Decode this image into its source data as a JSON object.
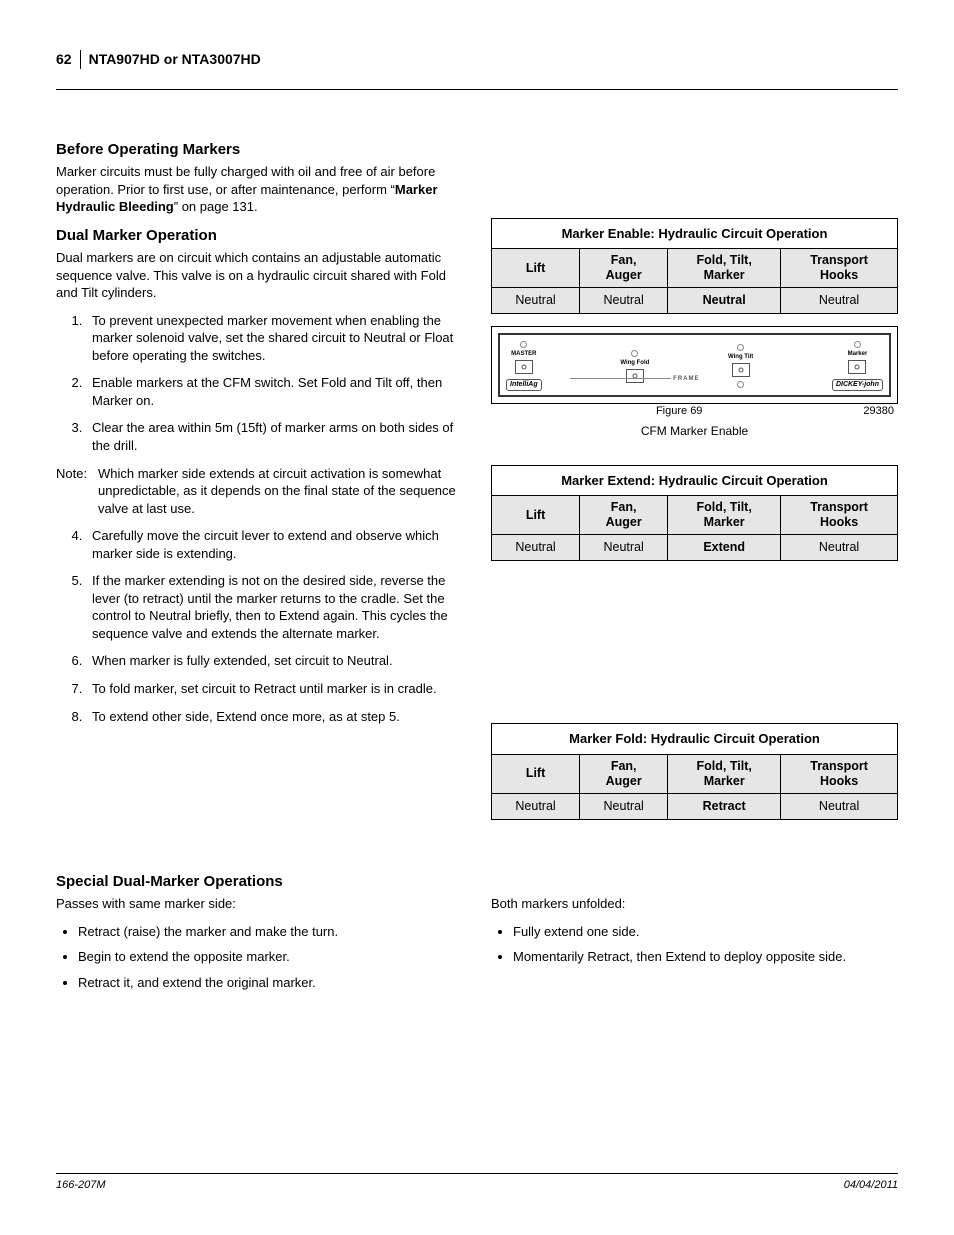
{
  "header": {
    "page_number": "62",
    "doc_title": "NTA907HD or NTA3007HD"
  },
  "left": {
    "h1": "Before Operating Markers",
    "p1_a": "Marker circuits must be fully charged with oil and free of air before operation. Prior to first use, or after maintenance, perform “",
    "p1_b": "Marker Hydraulic Bleeding",
    "p1_c": "” on page 131.",
    "h2": "Dual Marker Operation",
    "p2": "Dual markers are on circuit which contains an adjustable automatic sequence valve. This valve is on a hydraulic circuit shared with Fold and Tilt cylinders.",
    "ol1": [
      "To prevent unexpected marker movement when enabling the marker solenoid valve, set the shared circuit to Neutral or Float before operating the switches.",
      "Enable markers at the CFM switch. Set Fold and Tilt off, then Marker on.",
      "Clear the area within 5m (15ft) of marker arms on both sides of the drill."
    ],
    "note_label": "Note:",
    "note_text": "Which marker side extends at circuit activation is somewhat unpredictable, as it depends on the final state of the sequence valve at last use.",
    "ol2": [
      "Carefully move the circuit lever to extend and observe which marker side is extending.",
      "If the marker extending is not on the desired side, reverse the lever (to retract) until the marker returns to the cradle. Set the control to Neutral briefly, then to Extend again. This cycles the sequence valve and extends the alternate marker.",
      "When marker is fully extended, set circuit to Neutral.",
      "To fold marker, set circuit to Retract until marker is in cradle.",
      "To extend other side, Extend once more, as at step 5."
    ]
  },
  "tables": {
    "headers": [
      "Lift",
      "Fan,\nAuger",
      "Fold, Tilt,\nMarker",
      "Transport\nHooks"
    ],
    "enable": {
      "title": "Marker Enable: Hydraulic Circuit Operation",
      "row": [
        "Neutral",
        "Neutral",
        "Neutral",
        "Neutral"
      ],
      "bold_col": 2
    },
    "extend": {
      "title": "Marker Extend: Hydraulic Circuit Operation",
      "row": [
        "Neutral",
        "Neutral",
        "Extend",
        "Neutral"
      ],
      "bold_col": 2
    },
    "fold": {
      "title": "Marker Fold: Hydraulic Circuit Operation",
      "row": [
        "Neutral",
        "Neutral",
        "Retract",
        "Neutral"
      ],
      "bold_col": 2
    }
  },
  "figure": {
    "items": [
      {
        "label": "MASTER"
      },
      {
        "label": "Wing Fold"
      },
      {
        "label": "Wing Tilt"
      },
      {
        "label": "Marker"
      }
    ],
    "frame": "FRAME",
    "badge_left": "IntelliAg",
    "badge_right": "DICKEY-john",
    "fig_label": "Figure 69",
    "fig_code": "29380",
    "caption": "CFM Marker Enable"
  },
  "bottom": {
    "h3": "Special Dual-Marker Operations",
    "left_lead": "Passes with same marker side:",
    "left_items": [
      "Retract (raise) the marker and make the turn.",
      "Begin to extend the opposite marker.",
      "Retract it, and extend the original marker."
    ],
    "right_lead": "Both markers unfolded:",
    "right_items": [
      "Fully extend one side.",
      "Momentarily Retract, then Extend to deploy opposite side."
    ]
  },
  "footer": {
    "left": "166-207M",
    "right": "04/04/2011"
  },
  "colors": {
    "header_bg": "#e6e6e6",
    "border": "#000000",
    "text": "#000000"
  }
}
